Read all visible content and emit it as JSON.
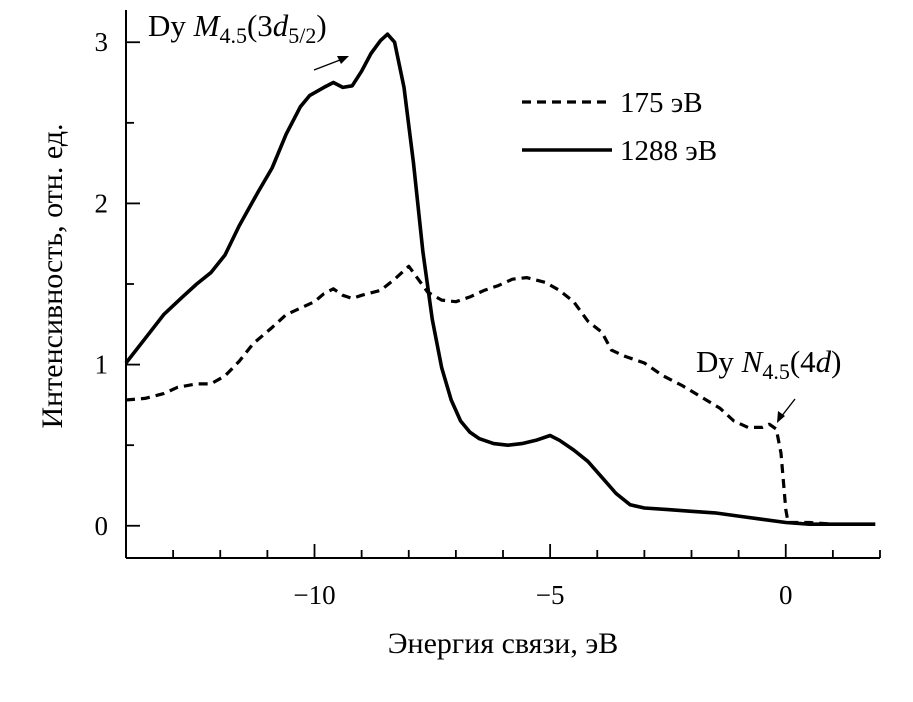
{
  "chart_data": {
    "type": "line",
    "title": "",
    "xlabel": "Энергия связи, эВ",
    "ylabel": "Интенсивность, отн. ед.",
    "xlim": [
      -14,
      2
    ],
    "ylim": [
      -0.2,
      3.2
    ],
    "x_ticks": [
      {
        "value": -10,
        "label": "−10"
      },
      {
        "value": -5,
        "label": "−5"
      },
      {
        "value": 0,
        "label": "0"
      }
    ],
    "y_ticks": [
      {
        "value": 0,
        "label": "0"
      },
      {
        "value": 1,
        "label": "1"
      },
      {
        "value": 2,
        "label": "2"
      },
      {
        "value": 3,
        "label": "3"
      }
    ],
    "grid": false,
    "legend": {
      "position": "top-right",
      "entries": [
        {
          "label": "175 эВ",
          "style": "dashed"
        },
        {
          "label": "1288 эВ",
          "style": "solid"
        }
      ]
    },
    "series": [
      {
        "name": "175 эВ",
        "style": "dashed",
        "color": "#000000",
        "points": [
          [
            -14,
            0.78
          ],
          [
            -13.6,
            0.79
          ],
          [
            -13.2,
            0.82
          ],
          [
            -12.9,
            0.86
          ],
          [
            -12.5,
            0.88
          ],
          [
            -12.2,
            0.88
          ],
          [
            -11.9,
            0.93
          ],
          [
            -11.6,
            1.02
          ],
          [
            -11.3,
            1.13
          ],
          [
            -10.9,
            1.23
          ],
          [
            -10.6,
            1.31
          ],
          [
            -10.3,
            1.35
          ],
          [
            -10.0,
            1.39
          ],
          [
            -9.8,
            1.44
          ],
          [
            -9.6,
            1.47
          ],
          [
            -9.4,
            1.43
          ],
          [
            -9.2,
            1.41
          ],
          [
            -9.0,
            1.43
          ],
          [
            -8.6,
            1.46
          ],
          [
            -8.3,
            1.53
          ],
          [
            -8.0,
            1.61
          ],
          [
            -7.9,
            1.57
          ],
          [
            -7.6,
            1.45
          ],
          [
            -7.3,
            1.4
          ],
          [
            -7.0,
            1.39
          ],
          [
            -6.7,
            1.42
          ],
          [
            -6.4,
            1.46
          ],
          [
            -6.1,
            1.49
          ],
          [
            -5.8,
            1.53
          ],
          [
            -5.5,
            1.54
          ],
          [
            -5.1,
            1.51
          ],
          [
            -4.8,
            1.46
          ],
          [
            -4.5,
            1.39
          ],
          [
            -4.2,
            1.27
          ],
          [
            -3.9,
            1.2
          ],
          [
            -3.7,
            1.09
          ],
          [
            -3.4,
            1.05
          ],
          [
            -3.0,
            1.01
          ],
          [
            -2.6,
            0.93
          ],
          [
            -2.2,
            0.87
          ],
          [
            -1.8,
            0.8
          ],
          [
            -1.4,
            0.73
          ],
          [
            -1.1,
            0.65
          ],
          [
            -0.8,
            0.61
          ],
          [
            -0.5,
            0.61
          ],
          [
            -0.35,
            0.63
          ],
          [
            -0.2,
            0.6
          ],
          [
            -0.1,
            0.45
          ],
          [
            0.0,
            0.1
          ],
          [
            0.05,
            0.02
          ],
          [
            0.5,
            0.02
          ],
          [
            1.0,
            0.01
          ],
          [
            1.9,
            0.01
          ]
        ]
      },
      {
        "name": "1288 эВ",
        "style": "solid",
        "color": "#000000",
        "points": [
          [
            -14,
            1.01
          ],
          [
            -13.6,
            1.16
          ],
          [
            -13.2,
            1.31
          ],
          [
            -12.8,
            1.42
          ],
          [
            -12.5,
            1.5
          ],
          [
            -12.2,
            1.57
          ],
          [
            -11.9,
            1.68
          ],
          [
            -11.6,
            1.86
          ],
          [
            -11.2,
            2.07
          ],
          [
            -10.9,
            2.22
          ],
          [
            -10.6,
            2.43
          ],
          [
            -10.3,
            2.6
          ],
          [
            -10.1,
            2.67
          ],
          [
            -9.8,
            2.72
          ],
          [
            -9.6,
            2.75
          ],
          [
            -9.4,
            2.72
          ],
          [
            -9.2,
            2.73
          ],
          [
            -9.0,
            2.82
          ],
          [
            -8.8,
            2.93
          ],
          [
            -8.6,
            3.01
          ],
          [
            -8.45,
            3.05
          ],
          [
            -8.3,
            3.0
          ],
          [
            -8.1,
            2.72
          ],
          [
            -7.9,
            2.25
          ],
          [
            -7.7,
            1.7
          ],
          [
            -7.5,
            1.28
          ],
          [
            -7.3,
            0.98
          ],
          [
            -7.1,
            0.78
          ],
          [
            -6.9,
            0.65
          ],
          [
            -6.7,
            0.58
          ],
          [
            -6.5,
            0.54
          ],
          [
            -6.2,
            0.51
          ],
          [
            -5.9,
            0.5
          ],
          [
            -5.6,
            0.51
          ],
          [
            -5.3,
            0.53
          ],
          [
            -5.0,
            0.56
          ],
          [
            -4.8,
            0.53
          ],
          [
            -4.5,
            0.47
          ],
          [
            -4.2,
            0.4
          ],
          [
            -3.9,
            0.3
          ],
          [
            -3.6,
            0.2
          ],
          [
            -3.3,
            0.13
          ],
          [
            -3.0,
            0.11
          ],
          [
            -2.5,
            0.1
          ],
          [
            -2.0,
            0.09
          ],
          [
            -1.5,
            0.08
          ],
          [
            -1.0,
            0.06
          ],
          [
            -0.5,
            0.04
          ],
          [
            0.0,
            0.02
          ],
          [
            0.5,
            0.01
          ],
          [
            1.0,
            0.01
          ],
          [
            1.9,
            0.01
          ]
        ]
      }
    ],
    "annotations": [
      {
        "prefix": "Dy ",
        "symbol": "M",
        "subscript": "4.5",
        "paren_open": "(3",
        "orbital": "d",
        "orbital_sub": "5/2",
        "paren_close": ")",
        "points_to": [
          -9.2,
          2.9
        ]
      },
      {
        "prefix": "Dy ",
        "symbol": "N",
        "subscript": "4.5",
        "paren_open": "(4",
        "orbital": "d",
        "paren_close": ")",
        "points_to": [
          -0.3,
          0.66
        ]
      }
    ]
  }
}
